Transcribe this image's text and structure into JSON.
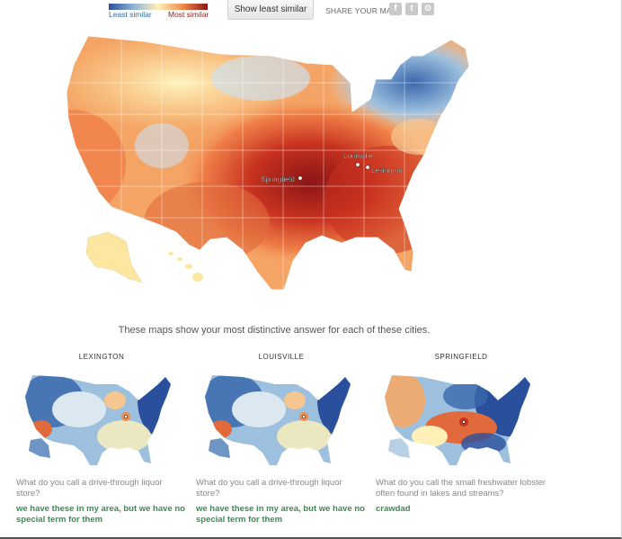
{
  "legend": {
    "least_label": "Least similar",
    "most_label": "Most similar",
    "colors": [
      "#2a4f9c",
      "#8fb4d6",
      "#fff0b8",
      "#f08a4b",
      "#8b1515"
    ]
  },
  "toolbar": {
    "show_least_label": "Show least similar",
    "share_label": "SHARE YOUR MAP:",
    "share_icons": [
      "facebook-icon",
      "twitter-icon",
      "link-icon"
    ],
    "facebook_glyph": "f",
    "twitter_glyph": "t",
    "link_glyph": "⊘"
  },
  "main_map": {
    "cities": [
      {
        "name": "Louisville"
      },
      {
        "name": "Lexington"
      },
      {
        "name": "Springfield"
      }
    ]
  },
  "caption": "These maps show your most distinctive answer for each of these cities.",
  "cities": [
    {
      "title": "LEXINGTON",
      "question": "What do you call a drive-through liquor store?",
      "answer": "we have these in my area, but we have no special term for them"
    },
    {
      "title": "LOUISVILLE",
      "question": "What do you call a drive-through liquor store?",
      "answer": "we have these in my area, but we have no special term for them"
    },
    {
      "title": "SPRINGFIELD",
      "question": "What do you call the small freshwater lobster often found in lakes and streams?",
      "answer": "crawdad"
    }
  ]
}
